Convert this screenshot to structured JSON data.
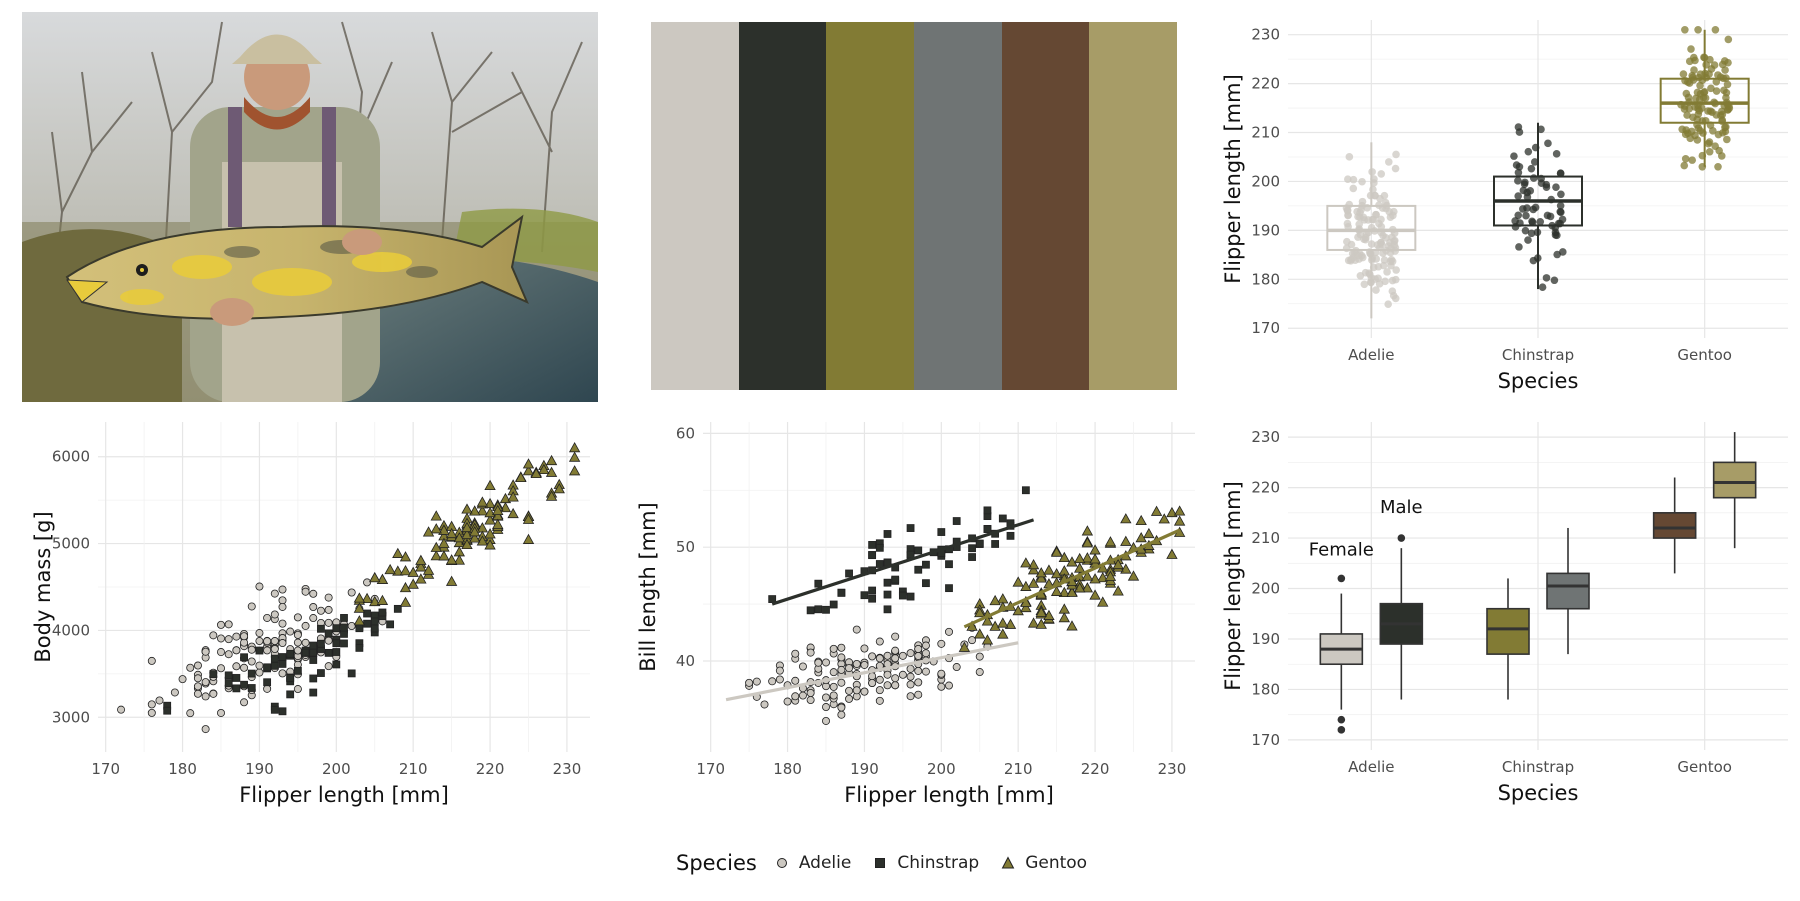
{
  "photo": {
    "description_icon": "photo-angler-holding-salmon",
    "colors": {
      "sky": "#c9ccd0",
      "trees": "#7d7a6a",
      "grass": "#8a8a3a",
      "water": "#3f5560",
      "shirt": "#9c9f86",
      "fish": "#c8b36a"
    }
  },
  "palette": {
    "swatches": [
      "#ccc8c1",
      "#2c302b",
      "#827b34",
      "#6f7474",
      "#654833",
      "#a79c67"
    ]
  },
  "legend": {
    "title": "Species",
    "items": [
      {
        "label": "Adelie",
        "shape": "circle",
        "color": "#ccc8c1"
      },
      {
        "label": "Chinstrap",
        "shape": "square",
        "color": "#2c302b"
      },
      {
        "label": "Gentoo",
        "shape": "triangle",
        "color": "#827b34"
      }
    ]
  },
  "chart_data": [
    {
      "id": "flipper-boxplot",
      "type": "boxplot",
      "xlabel": "Species",
      "ylabel": "Flipper length [mm]",
      "categories": [
        "Adelie",
        "Chinstrap",
        "Gentoo"
      ],
      "ylim": [
        168,
        233
      ],
      "yticks": [
        170,
        180,
        190,
        200,
        210,
        220,
        230
      ],
      "grid": true,
      "boxes": [
        {
          "name": "Adelie",
          "color": "#ccc8c1",
          "q1": 186,
          "median": 190,
          "q3": 195,
          "low": 172,
          "high": 208,
          "jitter": {
            "n": 140,
            "min": 172,
            "max": 210,
            "center": 190,
            "sd": 6.5
          }
        },
        {
          "name": "Chinstrap",
          "color": "#2c302b",
          "q1": 191,
          "median": 196,
          "q3": 201,
          "low": 178,
          "high": 212,
          "jitter": {
            "n": 68,
            "min": 178,
            "max": 212,
            "center": 196,
            "sd": 7
          }
        },
        {
          "name": "Gentoo",
          "color": "#827b34",
          "q1": 212,
          "median": 216,
          "q3": 221,
          "low": 203,
          "high": 231,
          "jitter": {
            "n": 120,
            "min": 203,
            "max": 231,
            "center": 217,
            "sd": 6.5
          }
        }
      ]
    },
    {
      "id": "body-mass-scatter",
      "type": "scatter",
      "xlabel": "Flipper length [mm]",
      "ylabel": "Body mass [g]",
      "xlim": [
        169,
        233
      ],
      "ylim": [
        2600,
        6400
      ],
      "xticks": [
        170,
        180,
        190,
        200,
        210,
        220,
        230
      ],
      "yticks": [
        3000,
        4000,
        5000,
        6000
      ],
      "grid": true,
      "series": [
        {
          "name": "Adelie",
          "shape": "circle",
          "color": "#ccc8c1",
          "n": 146,
          "xmin": 172,
          "xmax": 210,
          "xmean": 190,
          "xsd": 6.5,
          "slope": 32,
          "intercept": -2350,
          "noise": 420
        },
        {
          "name": "Chinstrap",
          "shape": "square",
          "color": "#2c302b",
          "n": 68,
          "xmin": 178,
          "xmax": 212,
          "xmean": 196,
          "xsd": 7,
          "slope": 34,
          "intercept": -2960,
          "noise": 300
        },
        {
          "name": "Gentoo",
          "shape": "triangle",
          "color": "#827b34",
          "n": 119,
          "xmin": 203,
          "xmax": 231,
          "xmean": 217,
          "xsd": 6.5,
          "slope": 55,
          "intercept": -6800,
          "noise": 320
        }
      ]
    },
    {
      "id": "bill-length-scatter",
      "type": "scatter",
      "xlabel": "Flipper length [mm]",
      "ylabel": "Bill length [mm]",
      "xlim": [
        169,
        233
      ],
      "ylim": [
        32,
        61
      ],
      "xticks": [
        170,
        180,
        190,
        200,
        210,
        220,
        230
      ],
      "yticks": [
        40,
        50,
        60
      ],
      "grid": true,
      "series": [
        {
          "name": "Adelie",
          "shape": "circle",
          "color": "#ccc8c1",
          "n": 146,
          "xmin": 172,
          "xmax": 210,
          "xmean": 190,
          "xsd": 6.5,
          "slope": 0.13,
          "intercept": 14.4,
          "noise": 2.6,
          "fit": [
            [
              172,
              36.6
            ],
            [
              210,
              41.6
            ]
          ]
        },
        {
          "name": "Chinstrap",
          "shape": "square",
          "color": "#2c302b",
          "n": 68,
          "xmin": 178,
          "xmax": 212,
          "xmean": 196,
          "xsd": 7,
          "slope": 0.22,
          "intercept": 5.6,
          "noise": 2.8,
          "fit": [
            [
              178,
              45.0
            ],
            [
              212,
              52.4
            ]
          ]
        },
        {
          "name": "Gentoo",
          "shape": "triangle",
          "color": "#827b34",
          "n": 119,
          "xmin": 203,
          "xmax": 231,
          "xmean": 217,
          "xsd": 6.5,
          "slope": 0.32,
          "intercept": -22,
          "noise": 2.6,
          "fit": [
            [
              203,
              43.0
            ],
            [
              231,
              51.5
            ]
          ]
        }
      ]
    },
    {
      "id": "flipper-sex-boxplot",
      "type": "boxplot",
      "xlabel": "Species",
      "ylabel": "Flipper length [mm]",
      "categories": [
        "Adelie",
        "Chinstrap",
        "Gentoo"
      ],
      "ylim": [
        168,
        233
      ],
      "yticks": [
        170,
        180,
        190,
        200,
        210,
        220,
        230
      ],
      "grid": true,
      "annotations": [
        {
          "text": "Female",
          "species": "Adelie",
          "group": "female",
          "y": 206.5
        },
        {
          "text": "Male",
          "species": "Adelie",
          "group": "male",
          "y": 215
        }
      ],
      "boxes": [
        {
          "species": "Adelie",
          "group": "female",
          "color": "#ccc8c1",
          "q1": 185,
          "median": 188,
          "q3": 191,
          "low": 176,
          "high": 199,
          "outliers": [
            174,
            172,
            202
          ]
        },
        {
          "species": "Adelie",
          "group": "male",
          "color": "#2c302b",
          "q1": 189,
          "median": 193,
          "q3": 197,
          "low": 178,
          "high": 208,
          "outliers": [
            210
          ]
        },
        {
          "species": "Chinstrap",
          "group": "female",
          "color": "#827b34",
          "q1": 187,
          "median": 192,
          "q3": 196,
          "low": 178,
          "high": 202,
          "outliers": []
        },
        {
          "species": "Chinstrap",
          "group": "male",
          "color": "#6f7474",
          "q1": 196,
          "median": 200.5,
          "q3": 203,
          "low": 187,
          "high": 212,
          "outliers": []
        },
        {
          "species": "Gentoo",
          "group": "female",
          "color": "#654833",
          "q1": 210,
          "median": 212,
          "q3": 215,
          "low": 203,
          "high": 222,
          "outliers": []
        },
        {
          "species": "Gentoo",
          "group": "male",
          "color": "#a79c67",
          "q1": 218,
          "median": 221,
          "q3": 225,
          "low": 208,
          "high": 231,
          "outliers": []
        }
      ]
    }
  ]
}
